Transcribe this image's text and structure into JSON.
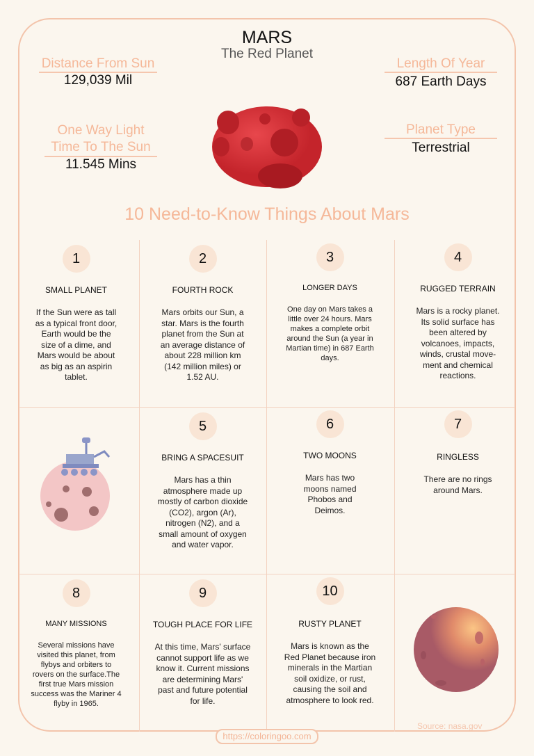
{
  "header": {
    "title": "MARS",
    "subtitle": "The Red Planet"
  },
  "facts": [
    {
      "label": "Distance From Sun",
      "value": "129,039 Mil"
    },
    {
      "label": "One Way Light Time To The Sun",
      "value": "11.545 Mins"
    },
    {
      "label": "Length Of Year",
      "value": "687 Earth Days"
    },
    {
      "label": "Planet Type",
      "value": "Terrestrial"
    }
  ],
  "heading": "10 Need-to-Know Things About Mars",
  "items": [
    {
      "num": "1",
      "title": "SMALL PLANET",
      "body": "If the Sun were as tall as a typical front door, Earth would be the size of a dime, and Mars would be about as big as an aspirin tablet."
    },
    {
      "num": "2",
      "title": "FOURTH ROCK",
      "body": "Mars orbits our Sun, a star. Mars is the fourth planet from the Sun at an average distance of about 228 million km (142 million miles) or 1.52 AU."
    },
    {
      "num": "3",
      "title": "LONGER DAYS",
      "body": "One day on Mars takes a little over 24 hours. Mars makes a complete orbit around the Sun (a year in Martian time) in 687 Earth days."
    },
    {
      "num": "4",
      "title": "RUGGED TERRAIN",
      "body": "Mars is a rocky planet. Its solid surface has been altered by volcanoes, impacts, winds, crustal move-ment and chemical reactions."
    },
    {
      "num": "5",
      "title": "BRING A SPACESUIT",
      "body": "Mars has a thin atmosphere made up mostly of carbon dioxide (CO2), argon (Ar), nitrogen (N2), and a small amount of oxygen and water vapor."
    },
    {
      "num": "6",
      "title": "TWO MOONS",
      "body": "Mars has two moons named Phobos and Deimos."
    },
    {
      "num": "7",
      "title": "RINGLESS",
      "body": "There are no rings around Mars."
    },
    {
      "num": "8",
      "title": "MANY MISSIONS",
      "body": "Several missions have visited this planet, from flybys and orbiters to rovers on the surface.The first true Mars mission success was the Mariner 4 flyby in 1965."
    },
    {
      "num": "9",
      "title": "TOUGH PLACE FOR LIFE",
      "body": "At this time, Mars' surface cannot support life as we know it. Current missions are determining Mars' past and future potential for life."
    },
    {
      "num": "10",
      "title": "RUSTY PLANET",
      "body": "Mars is known as the Red Planet because iron minerals in the Martian soil oxidize, or rust, causing the soil and atmosphere to look red."
    }
  ],
  "footer": {
    "source": "Source: nasa.gov",
    "url": "https://coloringoo.com"
  },
  "colors": {
    "accent": "#f5b899",
    "background": "#fbf6ee",
    "planet": "#d8333a"
  }
}
